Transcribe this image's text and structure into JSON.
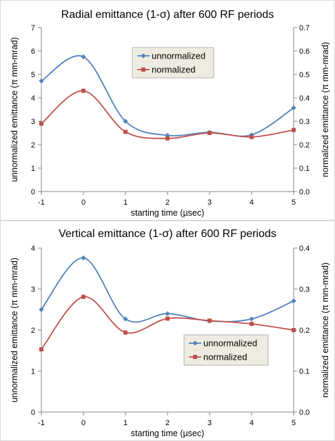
{
  "chart_data": [
    {
      "type": "line",
      "title": "Radial emittance (1-σ) after 600 RF periods",
      "xlabel": "starting time (µsec)",
      "ylabel": "unnormalized emittance (π mm-mrad)",
      "y2label": "normalized emittance (π mm-mrad)",
      "x": [
        -1,
        0,
        1,
        2,
        3,
        4,
        5
      ],
      "x_ticks": [
        "-1",
        "0",
        "1",
        "2",
        "3",
        "4",
        "5"
      ],
      "xlim": [
        -1,
        5
      ],
      "ylim": [
        0,
        7
      ],
      "y_ticks": [
        "0",
        "1",
        "2",
        "3",
        "4",
        "5",
        "6",
        "7"
      ],
      "y2lim": [
        0,
        0.7
      ],
      "y2_ticks": [
        "0.0",
        "0.1",
        "0.2",
        "0.3",
        "0.4",
        "0.5",
        "0.6",
        "0.7"
      ],
      "grid": false,
      "smooth": true,
      "legend_placement": "upper-center",
      "series": [
        {
          "name": "unnormalized",
          "axis": "left",
          "color": "#4f81bd",
          "marker": "diamond",
          "values": [
            4.72,
            5.75,
            3.0,
            2.4,
            2.53,
            2.42,
            3.57
          ]
        },
        {
          "name": "normalized",
          "axis": "right",
          "color": "#c0504d",
          "marker": "square",
          "values": [
            0.29,
            0.43,
            0.255,
            0.227,
            0.25,
            0.233,
            0.263
          ]
        }
      ]
    },
    {
      "type": "line",
      "title": "Vertical emittance (1-σ) after 600 RF periods",
      "xlabel": "starting time (µsec)",
      "ylabel": "unnormalized emittance (π mm-mrad)",
      "y2label": "normalized emittance (π mm-mrad)",
      "x": [
        -1,
        0,
        1,
        2,
        3,
        4,
        5
      ],
      "x_ticks": [
        "-1",
        "0",
        "1",
        "2",
        "3",
        "4",
        "5"
      ],
      "xlim": [
        -1,
        5
      ],
      "ylim": [
        0,
        4
      ],
      "y_ticks": [
        "0",
        "1",
        "2",
        "3",
        "4"
      ],
      "y2lim": [
        0,
        0.4
      ],
      "y2_ticks": [
        "0.0",
        "0.1",
        "0.2",
        "0.3",
        "0.4"
      ],
      "grid": false,
      "smooth": true,
      "legend_placement": "lower-right",
      "series": [
        {
          "name": "unnormalized",
          "axis": "left",
          "color": "#4f81bd",
          "marker": "diamond",
          "values": [
            2.5,
            3.76,
            2.27,
            2.4,
            2.22,
            2.27,
            2.71
          ]
        },
        {
          "name": "normalized",
          "axis": "right",
          "color": "#c0504d",
          "marker": "square",
          "values": [
            0.153,
            0.281,
            0.194,
            0.228,
            0.223,
            0.215,
            0.2
          ]
        }
      ]
    }
  ]
}
